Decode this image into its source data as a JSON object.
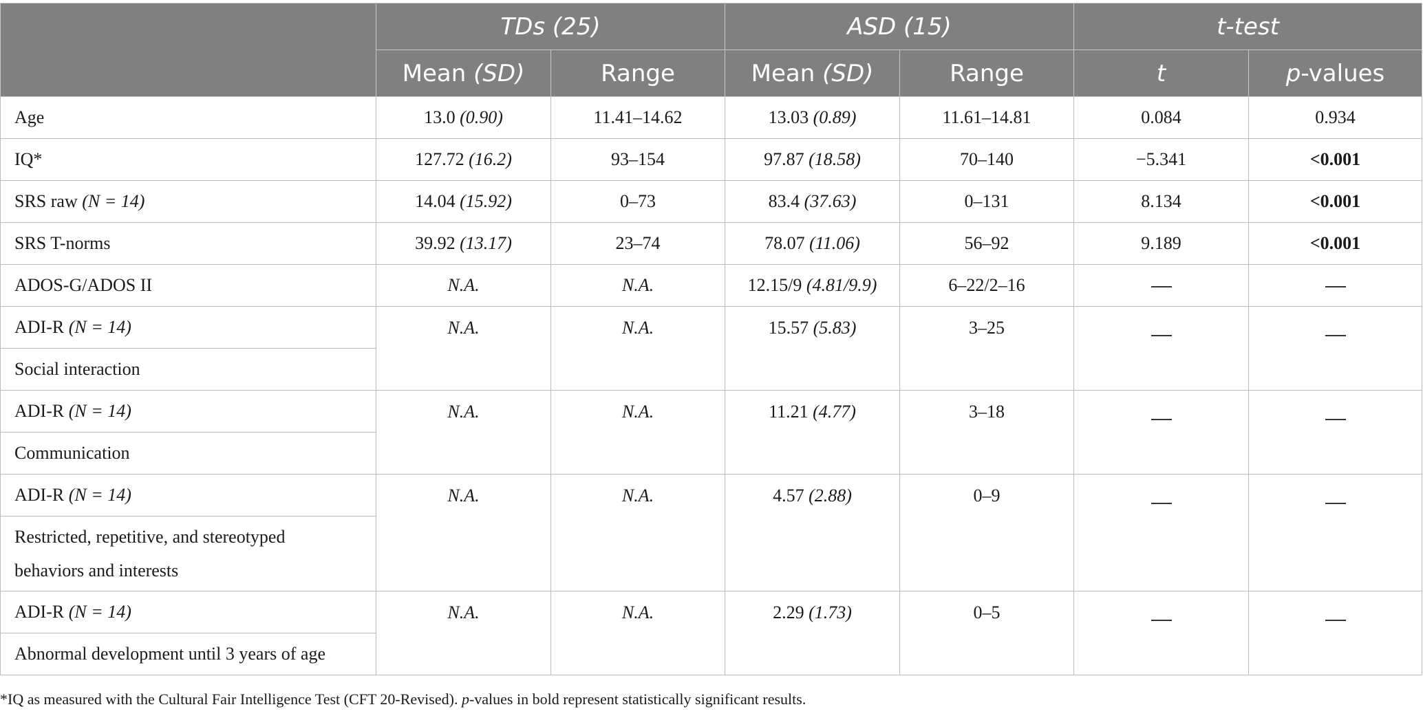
{
  "header": {
    "groups": [
      "TDs (25)",
      "ASD (15)",
      "t-test"
    ],
    "sub": {
      "mean": "Mean",
      "sd": "(SD)",
      "range": "Range",
      "t": "t",
      "p": "p",
      "p_suffix": "-values"
    }
  },
  "rows": {
    "age": {
      "label": "Age",
      "td_mean": "13.0",
      "td_sd": "(0.90)",
      "td_range": "11.41–14.62",
      "asd_mean": "13.03",
      "asd_sd": "(0.89)",
      "asd_range": "11.61–14.81",
      "t": "0.084",
      "p": "0.934"
    },
    "iq": {
      "label": "IQ*",
      "td_mean": "127.72",
      "td_sd": "(16.2)",
      "td_range": "93–154",
      "asd_mean": "97.87",
      "asd_sd": "(18.58)",
      "asd_range": "70–140",
      "t": "−5.341",
      "p": "<0.001"
    },
    "srs_raw": {
      "label": "SRS raw",
      "label_n": "(N = 14)",
      "td_mean": "14.04",
      "td_sd": "(15.92)",
      "td_range": "0–73",
      "asd_mean": "83.4",
      "asd_sd": "(37.63)",
      "asd_range": "0–131",
      "t": "8.134",
      "p": "<0.001"
    },
    "srs_t": {
      "label": "SRS T-norms",
      "td_mean": "39.92",
      "td_sd": "(13.17)",
      "td_range": "23–74",
      "asd_mean": "78.07",
      "asd_sd": "(11.06)",
      "asd_range": "56–92",
      "t": "9.189",
      "p": "<0.001"
    },
    "ados": {
      "label": "ADOS-G/ADOS II",
      "td_mean": "N.A.",
      "td_range": "N.A.",
      "asd_mean": "12.15/9",
      "asd_sd": "(4.81/9.9)",
      "asd_range": "6–22/2–16"
    },
    "adi_social": {
      "label": "ADI-R",
      "label_n": "(N = 14)",
      "sublabel": "Social interaction",
      "td_mean": "N.A.",
      "td_range": "N.A.",
      "asd_mean": "15.57",
      "asd_sd": "(5.83)",
      "asd_range": "3–25"
    },
    "adi_comm": {
      "label": "ADI-R",
      "label_n": "(N = 14)",
      "sublabel": "Communication",
      "td_mean": "N.A.",
      "td_range": "N.A.",
      "asd_mean": "11.21",
      "asd_sd": "(4.77)",
      "asd_range": "3–18"
    },
    "adi_rrb": {
      "label": "ADI-R",
      "label_n": "(N = 14)",
      "sublabel": "Restricted, repetitive, and stereotyped behaviors and interests",
      "td_mean": "N.A.",
      "td_range": "N.A.",
      "asd_mean": "4.57",
      "asd_sd": "(2.88)",
      "asd_range": "0–9"
    },
    "adi_dev": {
      "label": "ADI-R",
      "label_n": "(N = 14)",
      "sublabel": "Abnormal development until 3 years of age",
      "td_mean": "N.A.",
      "td_range": "N.A.",
      "asd_mean": "2.29",
      "asd_sd": "(1.73)",
      "asd_range": "0–5"
    }
  },
  "footnote": {
    "part1": "*IQ as measured with the Cultural Fair Intelligence Test (CFT 20-Revised). ",
    "p": "p",
    "part2": "-values in bold represent statistically significant results."
  }
}
